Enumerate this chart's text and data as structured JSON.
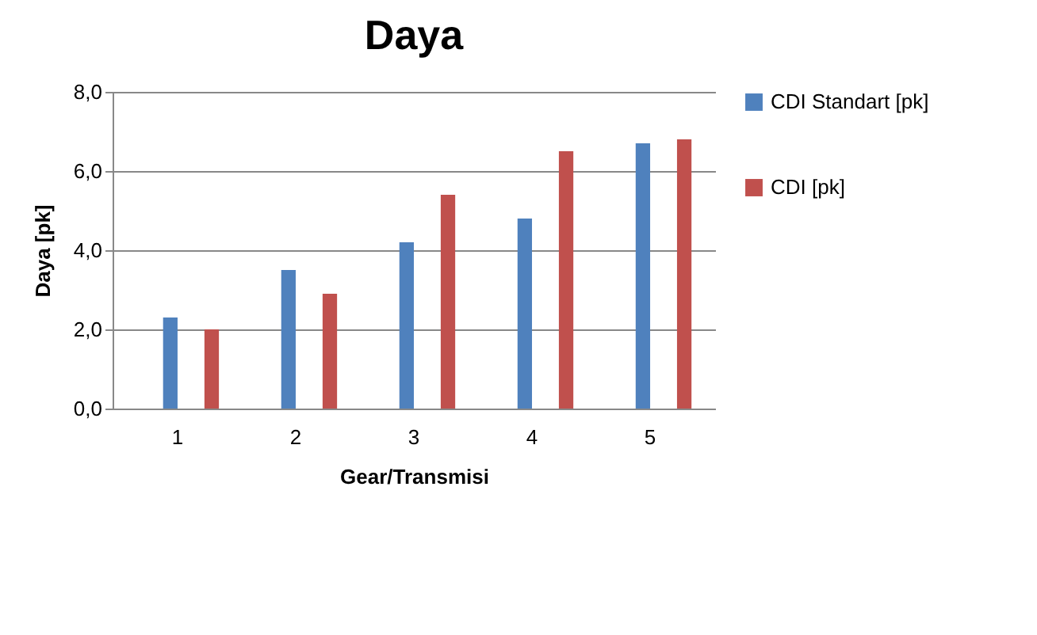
{
  "chart_data": {
    "type": "bar",
    "title": "Daya",
    "xlabel": "Gear/Transmisi",
    "ylabel": "Daya [pk]",
    "categories": [
      "1",
      "2",
      "3",
      "4",
      "5"
    ],
    "series": [
      {
        "name": "CDI Standart [pk]",
        "color": "#4f81bd",
        "values": [
          2.3,
          3.5,
          4.2,
          4.8,
          6.7
        ]
      },
      {
        "name": "CDI [pk]",
        "color": "#c0504d",
        "values": [
          2.0,
          2.9,
          5.4,
          6.5,
          6.8
        ]
      }
    ],
    "ylim": [
      0,
      8
    ],
    "yticks": [
      {
        "value": 0,
        "label": "0,0"
      },
      {
        "value": 2,
        "label": "2,0"
      },
      {
        "value": 4,
        "label": "4,0"
      },
      {
        "value": 6,
        "label": "6,0"
      },
      {
        "value": 8,
        "label": "8,0"
      }
    ],
    "grid": "y",
    "legend": "right"
  }
}
